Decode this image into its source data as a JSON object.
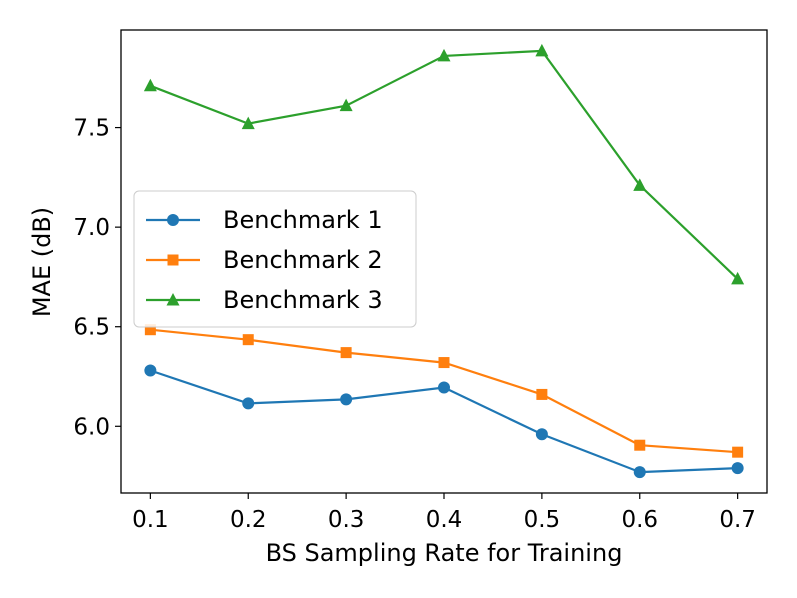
{
  "chart_data": {
    "type": "line",
    "x": [
      0.1,
      0.2,
      0.3,
      0.4,
      0.5,
      0.6,
      0.7
    ],
    "series": [
      {
        "name": "Benchmark 1",
        "values": [
          6.28,
          6.115,
          6.135,
          6.195,
          5.96,
          5.77,
          5.79
        ],
        "color": "#1f77b4",
        "marker": "circle"
      },
      {
        "name": "Benchmark 2",
        "values": [
          6.485,
          6.435,
          6.37,
          6.32,
          6.16,
          5.905,
          5.87
        ],
        "color": "#ff7f0e",
        "marker": "square"
      },
      {
        "name": "Benchmark 3",
        "values": [
          7.71,
          7.52,
          7.61,
          7.86,
          7.885,
          7.21,
          6.74
        ],
        "color": "#2ca02c",
        "marker": "triangle"
      }
    ],
    "xticks": [
      "0.1",
      "0.2",
      "0.3",
      "0.4",
      "0.5",
      "0.6",
      "0.7"
    ],
    "yticks": [
      "6.0",
      "6.5",
      "7.0",
      "7.5"
    ],
    "xlabel": "BS Sampling Rate for Training",
    "ylabel": "MAE (dB)",
    "xlim": [
      0.07,
      0.73
    ],
    "ylim": [
      5.665,
      7.99
    ],
    "grid": false,
    "legend_position": "center-left"
  }
}
